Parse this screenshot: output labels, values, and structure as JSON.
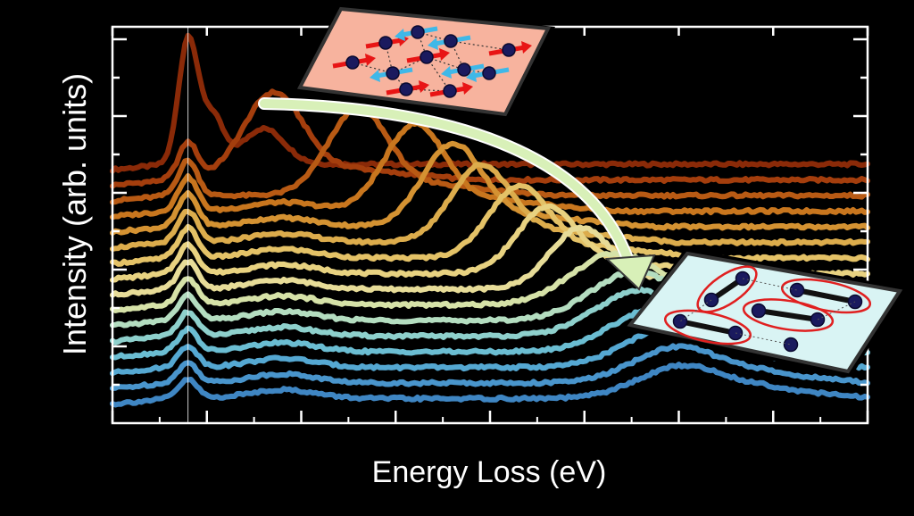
{
  "chart_data": {
    "type": "line",
    "title": "",
    "xlabel": "Energy Loss (eV)",
    "ylabel": "Intensity (arb. units)",
    "xlim": [
      0,
      8
    ],
    "ylim": [
      0,
      16
    ],
    "grid": false,
    "legend": "none",
    "elastic_line_x": 0.8,
    "colors": [
      "#8a2a08",
      "#a43e0d",
      "#b85a14",
      "#c8761e",
      "#d49232",
      "#dcac4c",
      "#e4c267",
      "#e8d281",
      "#e7dc98",
      "#d6e2a8",
      "#b4ddc0",
      "#8ed0cc",
      "#6bbdd2",
      "#55a8d2",
      "#4995cc",
      "#3f86c3"
    ],
    "series": [
      {
        "peak": 0.8,
        "offset": 15.0
      },
      {
        "peak": 1.7,
        "offset": 14.0
      },
      {
        "peak": 2.6,
        "offset": 13.0
      },
      {
        "peak": 3.2,
        "offset": 12.0
      },
      {
        "peak": 3.6,
        "offset": 11.0
      },
      {
        "peak": 3.9,
        "offset": 10.0
      },
      {
        "peak": 4.3,
        "offset": 9.0
      },
      {
        "peak": 4.6,
        "offset": 8.0
      },
      {
        "peak": 4.95,
        "offset": 7.0
      },
      {
        "peak": 5.3,
        "offset": 6.0
      },
      {
        "peak": 5.5,
        "offset": 5.0
      },
      {
        "peak": 5.55,
        "offset": 4.0
      },
      {
        "peak": 5.7,
        "offset": 3.0
      },
      {
        "peak": 5.85,
        "offset": 2.0
      },
      {
        "peak": 5.95,
        "offset": 1.0
      },
      {
        "peak": 6.0,
        "offset": 0.0
      }
    ],
    "insets": [
      {
        "icon": "antiferromagnetic-spin-lattice-icon",
        "background": "#f7b39e"
      },
      {
        "icon": "spin-singlet-dimer-lattice-icon",
        "background": "#d9f4f4"
      }
    ],
    "arrow_color": "#d8f0b8"
  }
}
